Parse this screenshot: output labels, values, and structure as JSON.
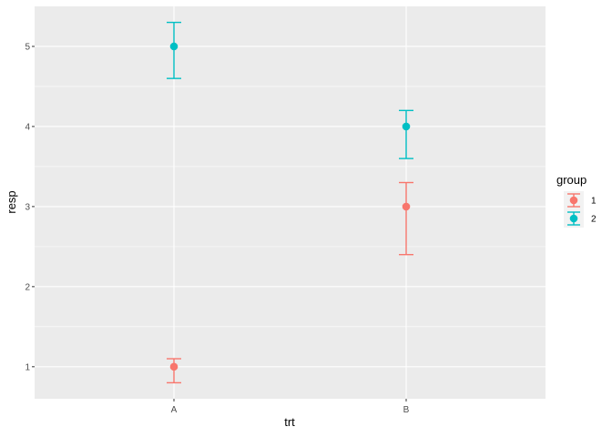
{
  "chart_data": {
    "type": "scatter",
    "subtype": "point-errorbar",
    "xlabel": "trt",
    "ylabel": "resp",
    "categories": [
      "A",
      "B"
    ],
    "ylim": [
      0.6,
      5.5
    ],
    "yticks": [
      "1",
      "2",
      "3",
      "4",
      "5"
    ],
    "grid": true,
    "legend": {
      "title": "group",
      "position": "right"
    },
    "series": [
      {
        "name": "1",
        "color": "#F8766D",
        "points": [
          {
            "x": "A",
            "y": 1,
            "lower": 0.8,
            "upper": 1.1
          },
          {
            "x": "B",
            "y": 3,
            "lower": 2.4,
            "upper": 3.3
          }
        ]
      },
      {
        "name": "2",
        "color": "#00BFC4",
        "points": [
          {
            "x": "A",
            "y": 5,
            "lower": 4.6,
            "upper": 5.3
          },
          {
            "x": "B",
            "y": 4,
            "lower": 3.6,
            "upper": 4.2
          }
        ]
      }
    ]
  }
}
